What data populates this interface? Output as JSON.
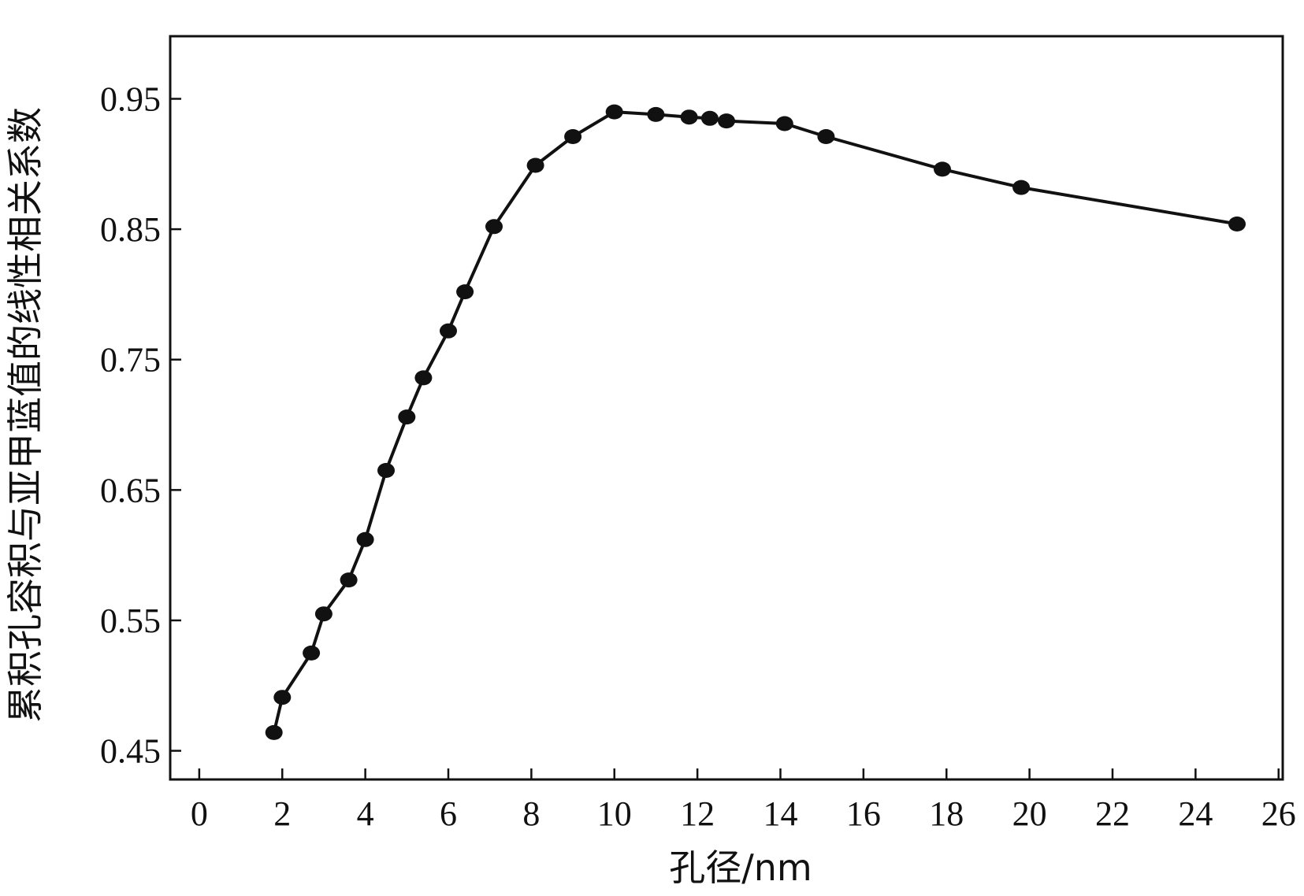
{
  "chart_data": {
    "type": "line",
    "title": "",
    "xlabel": "孔径/nm",
    "ylabel": "累积孔容积与亚甲蓝值的线性相关系数",
    "xlim": [
      -0.7,
      26.1
    ],
    "ylim": [
      0.428,
      0.998
    ],
    "x_ticks": [
      0,
      2,
      4,
      6,
      8,
      10,
      12,
      14,
      16,
      18,
      20,
      22,
      24,
      26
    ],
    "x_tick_labels": [
      "0",
      "2",
      "4",
      "6",
      "8",
      "10",
      "12",
      "14",
      "16",
      "18",
      "20",
      "22",
      "24",
      "26"
    ],
    "y_ticks": [
      0.45,
      0.55,
      0.65,
      0.75,
      0.85,
      0.95
    ],
    "y_tick_labels": [
      "0.45",
      "0.55",
      "0.65",
      "0.75",
      "0.85",
      "0.95"
    ],
    "grid": false,
    "series": [
      {
        "x": [
          1.8,
          2.0,
          2.7,
          3.0,
          3.6,
          4.0,
          4.5,
          5.0,
          5.4,
          6.0,
          6.4,
          7.1,
          8.1,
          9.0,
          10.0,
          11.0,
          11.8,
          12.3,
          12.7,
          14.1,
          15.1,
          17.9,
          19.8,
          25.0
        ],
        "values": [
          0.464,
          0.491,
          0.525,
          0.555,
          0.581,
          0.612,
          0.665,
          0.706,
          0.736,
          0.772,
          0.802,
          0.852,
          0.899,
          0.921,
          0.94,
          0.938,
          0.936,
          0.935,
          0.933,
          0.931,
          0.921,
          0.896,
          0.882,
          0.854
        ]
      }
    ]
  }
}
